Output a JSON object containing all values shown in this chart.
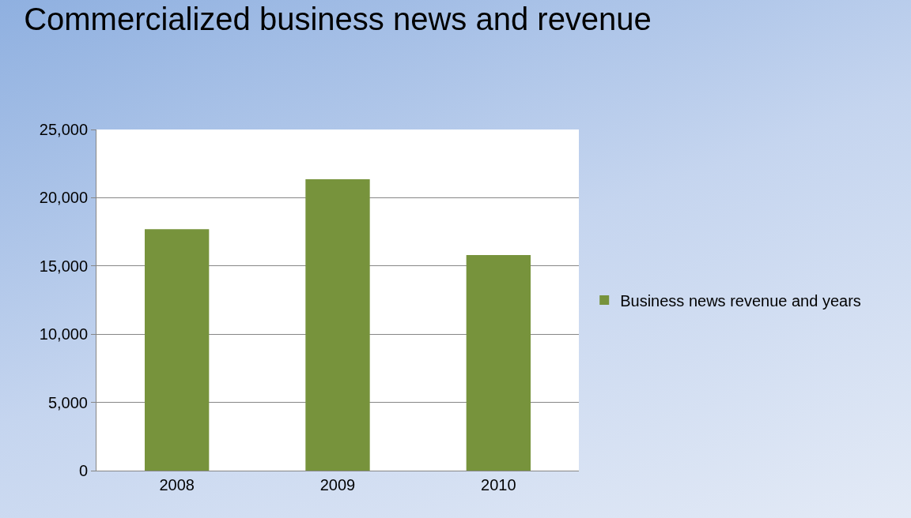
{
  "chart_data": {
    "type": "bar",
    "title": "Commercialized business news and revenue",
    "categories": [
      "2008",
      "2009",
      "2010"
    ],
    "series": [
      {
        "name": "Business news revenue and years",
        "color": "#77933c",
        "values": [
          17700,
          21350,
          15800
        ]
      }
    ],
    "ylim": [
      0,
      25000
    ],
    "yticks": [
      {
        "value": 0,
        "label": "0"
      },
      {
        "value": 5000,
        "label": "5,000"
      },
      {
        "value": 10000,
        "label": "10,000"
      },
      {
        "value": 15000,
        "label": "15,000"
      },
      {
        "value": 20000,
        "label": "20,000"
      },
      {
        "value": 25000,
        "label": "25,000"
      }
    ],
    "grid": "y",
    "legend": "right"
  }
}
